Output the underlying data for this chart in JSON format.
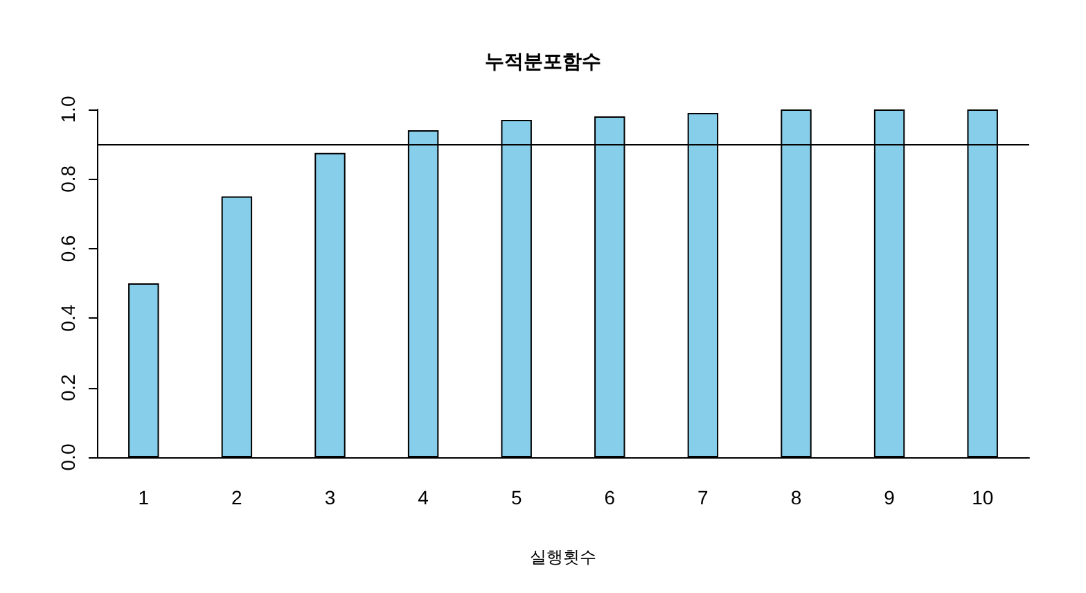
{
  "chart_data": {
    "type": "bar",
    "title": "누적분포함수",
    "xlabel": "실행횟수",
    "categories": [
      "1",
      "2",
      "3",
      "4",
      "5",
      "6",
      "7",
      "8",
      "9",
      "10"
    ],
    "values": [
      0.5,
      0.75,
      0.875,
      0.94,
      0.97,
      0.98,
      0.99,
      1.0,
      1.0,
      1.0
    ],
    "color": "#87ceeb",
    "ylim": [
      0,
      1
    ],
    "yticks": [
      {
        "value": 0,
        "label": "0.0"
      },
      {
        "value": 0.2,
        "label": "0.2"
      },
      {
        "value": 0.4,
        "label": "0.4"
      },
      {
        "value": 0.6,
        "label": "0.6"
      },
      {
        "value": 0.8,
        "label": "0.8"
      },
      {
        "value": 1,
        "label": "1.0"
      }
    ],
    "ref_lines": [
      {
        "axis": "y",
        "value": 0.9,
        "color": "#000000"
      }
    ]
  }
}
